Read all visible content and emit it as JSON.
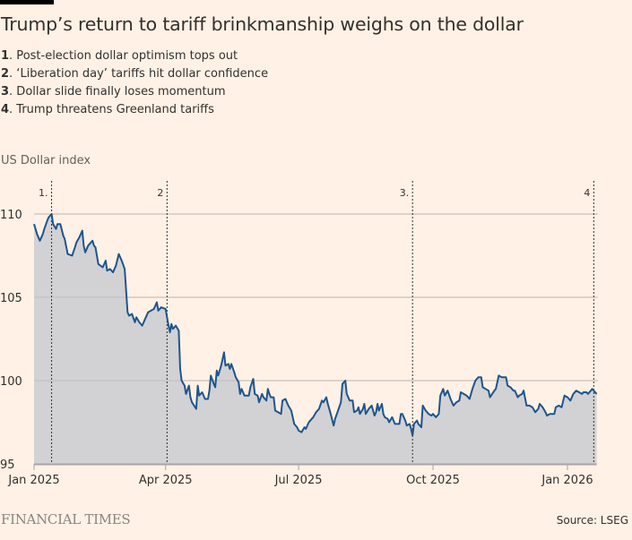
{
  "header": {
    "title": "Trump’s return to tariff brinkmanship weighs on the dollar",
    "notes": [
      {
        "num": "1",
        "text": ". Post-election dollar optimism tops out"
      },
      {
        "num": "2",
        "text": ". ‘Liberation day’ tariffs hit dollar confidence"
      },
      {
        "num": "3",
        "text": ". Dollar slide finally loses momentum"
      },
      {
        "num": "4",
        "text": ". Trump threatens Greenland tariffs"
      }
    ]
  },
  "footer": {
    "logo": "FINANCIAL TIMES",
    "source": "Source: LSEG"
  },
  "colors": {
    "background": "#fff1e5",
    "line": "#1e558c",
    "area": "#d2d2d4",
    "grid": "#c9bcb3",
    "axis": "#a7a4a9",
    "annotation": "#33302e"
  },
  "chart_data": {
    "type": "area",
    "title": "Trump’s return to tariff brinkmanship weighs on the dollar",
    "ylabel": "US Dollar index",
    "xlabel": "",
    "ylim": [
      95,
      112
    ],
    "xlim": [
      "2025-01-01",
      "2026-01-21"
    ],
    "yticks": [
      95,
      100,
      105,
      110
    ],
    "xticks": [
      {
        "date": "2025-01-01",
        "label": "Jan 2025"
      },
      {
        "date": "2025-04-01",
        "label": "Apr 2025"
      },
      {
        "date": "2025-07-01",
        "label": "Jul 2025"
      },
      {
        "date": "2025-10-01",
        "label": "Oct 2025"
      },
      {
        "date": "2026-01-01",
        "label": "Jan 2026"
      }
    ],
    "grid": true,
    "annotations": [
      {
        "date": "2025-01-13",
        "label": "1."
      },
      {
        "date": "2025-04-02",
        "label": "2"
      },
      {
        "date": "2025-09-17",
        "label": "3."
      },
      {
        "date": "2026-01-19",
        "label": "4"
      }
    ],
    "series": [
      {
        "name": "US Dollar index",
        "points": [
          [
            "2025-01-01",
            109.4
          ],
          [
            "2025-01-03",
            108.8
          ],
          [
            "2025-01-05",
            108.4
          ],
          [
            "2025-01-07",
            108.8
          ],
          [
            "2025-01-08",
            109.1
          ],
          [
            "2025-01-10",
            109.6
          ],
          [
            "2025-01-11",
            109.8
          ],
          [
            "2025-01-13",
            110.0
          ],
          [
            "2025-01-14",
            109.4
          ],
          [
            "2025-01-16",
            109.1
          ],
          [
            "2025-01-17",
            109.4
          ],
          [
            "2025-01-19",
            109.4
          ],
          [
            "2025-01-21",
            108.7
          ],
          [
            "2025-01-22",
            108.5
          ],
          [
            "2025-01-24",
            107.6
          ],
          [
            "2025-01-27",
            107.5
          ],
          [
            "2025-01-29",
            108.0
          ],
          [
            "2025-01-30",
            108.3
          ],
          [
            "2025-02-01",
            108.6
          ],
          [
            "2025-02-03",
            109.0
          ],
          [
            "2025-02-04",
            108.1
          ],
          [
            "2025-02-05",
            107.7
          ],
          [
            "2025-02-07",
            108.1
          ],
          [
            "2025-02-09",
            108.3
          ],
          [
            "2025-02-10",
            108.4
          ],
          [
            "2025-02-11",
            108.1
          ],
          [
            "2025-02-12",
            108.0
          ],
          [
            "2025-02-14",
            107.0
          ],
          [
            "2025-02-17",
            106.8
          ],
          [
            "2025-02-19",
            107.2
          ],
          [
            "2025-02-20",
            106.6
          ],
          [
            "2025-02-22",
            106.7
          ],
          [
            "2025-02-24",
            106.5
          ],
          [
            "2025-02-26",
            106.9
          ],
          [
            "2025-02-28",
            107.6
          ],
          [
            "2025-03-02",
            107.2
          ],
          [
            "2025-03-04",
            106.7
          ],
          [
            "2025-03-06",
            104.1
          ],
          [
            "2025-03-07",
            103.9
          ],
          [
            "2025-03-09",
            104.0
          ],
          [
            "2025-03-11",
            103.5
          ],
          [
            "2025-03-12",
            103.8
          ],
          [
            "2025-03-14",
            103.5
          ],
          [
            "2025-03-16",
            103.3
          ],
          [
            "2025-03-18",
            103.7
          ],
          [
            "2025-03-20",
            104.1
          ],
          [
            "2025-03-22",
            104.2
          ],
          [
            "2025-03-24",
            104.3
          ],
          [
            "2025-03-26",
            104.7
          ],
          [
            "2025-03-27",
            104.2
          ],
          [
            "2025-03-29",
            104.4
          ],
          [
            "2025-04-01",
            104.3
          ],
          [
            "2025-04-03",
            103.3
          ],
          [
            "2025-04-04",
            102.9
          ],
          [
            "2025-04-05",
            103.4
          ],
          [
            "2025-04-06",
            103.1
          ],
          [
            "2025-04-08",
            103.3
          ],
          [
            "2025-04-10",
            103.0
          ],
          [
            "2025-04-11",
            100.7
          ],
          [
            "2025-04-12",
            100.0
          ],
          [
            "2025-04-14",
            99.7
          ],
          [
            "2025-04-15",
            99.2
          ],
          [
            "2025-04-17",
            99.7
          ],
          [
            "2025-04-18",
            99.0
          ],
          [
            "2025-04-19",
            98.7
          ],
          [
            "2025-04-22",
            98.3
          ],
          [
            "2025-04-23",
            99.7
          ],
          [
            "2025-04-24",
            99.1
          ],
          [
            "2025-04-26",
            99.3
          ],
          [
            "2025-04-28",
            98.9
          ],
          [
            "2025-04-30",
            98.9
          ],
          [
            "2025-05-01",
            99.4
          ],
          [
            "2025-05-02",
            100.3
          ],
          [
            "2025-05-04",
            99.8
          ],
          [
            "2025-05-05",
            99.6
          ],
          [
            "2025-05-06",
            100.6
          ],
          [
            "2025-05-07",
            100.3
          ],
          [
            "2025-05-09",
            100.9
          ],
          [
            "2025-05-11",
            101.7
          ],
          [
            "2025-05-12",
            100.9
          ],
          [
            "2025-05-14",
            101.0
          ],
          [
            "2025-05-15",
            100.7
          ],
          [
            "2025-05-16",
            101.0
          ],
          [
            "2025-05-18",
            100.5
          ],
          [
            "2025-05-19",
            100.2
          ],
          [
            "2025-05-21",
            99.9
          ],
          [
            "2025-05-22",
            99.2
          ],
          [
            "2025-05-23",
            99.5
          ],
          [
            "2025-05-25",
            99.1
          ],
          [
            "2025-05-28",
            99.1
          ],
          [
            "2025-05-29",
            99.6
          ],
          [
            "2025-05-31",
            100.1
          ],
          [
            "2025-06-01",
            99.2
          ],
          [
            "2025-06-03",
            99.1
          ],
          [
            "2025-06-04",
            98.7
          ],
          [
            "2025-06-06",
            99.2
          ],
          [
            "2025-06-07",
            99.0
          ],
          [
            "2025-06-09",
            98.8
          ],
          [
            "2025-06-10",
            99.5
          ],
          [
            "2025-06-11",
            99.2
          ],
          [
            "2025-06-12",
            99.0
          ],
          [
            "2025-06-14",
            99.0
          ],
          [
            "2025-06-15",
            98.2
          ],
          [
            "2025-06-17",
            98.1
          ],
          [
            "2025-06-19",
            98.0
          ],
          [
            "2025-06-20",
            98.8
          ],
          [
            "2025-06-22",
            98.9
          ],
          [
            "2025-06-24",
            98.5
          ],
          [
            "2025-06-26",
            98.2
          ],
          [
            "2025-06-28",
            97.4
          ],
          [
            "2025-06-30",
            97.2
          ],
          [
            "2025-07-01",
            97.0
          ],
          [
            "2025-07-03",
            96.9
          ],
          [
            "2025-07-05",
            97.2
          ],
          [
            "2025-07-06",
            97.1
          ],
          [
            "2025-07-08",
            97.5
          ],
          [
            "2025-07-10",
            97.7
          ],
          [
            "2025-07-11",
            97.8
          ],
          [
            "2025-07-13",
            98.1
          ],
          [
            "2025-07-15",
            98.3
          ],
          [
            "2025-07-17",
            98.8
          ],
          [
            "2025-07-18",
            98.7
          ],
          [
            "2025-07-20",
            99.0
          ],
          [
            "2025-07-21",
            98.6
          ],
          [
            "2025-07-23",
            98.0
          ],
          [
            "2025-07-25",
            97.3
          ],
          [
            "2025-07-26",
            97.7
          ],
          [
            "2025-07-28",
            98.2
          ],
          [
            "2025-07-30",
            98.7
          ],
          [
            "2025-07-31",
            99.8
          ],
          [
            "2025-08-02",
            100.0
          ],
          [
            "2025-08-03",
            99.2
          ],
          [
            "2025-08-05",
            98.8
          ],
          [
            "2025-08-07",
            98.8
          ],
          [
            "2025-08-08",
            98.1
          ],
          [
            "2025-08-10",
            98.2
          ],
          [
            "2025-08-11",
            98.4
          ],
          [
            "2025-08-12",
            98.0
          ],
          [
            "2025-08-14",
            98.3
          ],
          [
            "2025-08-15",
            98.6
          ],
          [
            "2025-08-16",
            98.0
          ],
          [
            "2025-08-18",
            98.3
          ],
          [
            "2025-08-19",
            98.4
          ],
          [
            "2025-08-20",
            98.5
          ],
          [
            "2025-08-22",
            97.9
          ],
          [
            "2025-08-23",
            98.1
          ],
          [
            "2025-08-24",
            98.6
          ],
          [
            "2025-08-25",
            98.2
          ],
          [
            "2025-08-27",
            98.6
          ],
          [
            "2025-08-28",
            98.0
          ],
          [
            "2025-08-29",
            97.8
          ],
          [
            "2025-08-31",
            97.7
          ],
          [
            "2025-09-01",
            97.5
          ],
          [
            "2025-09-03",
            97.8
          ],
          [
            "2025-09-05",
            97.4
          ],
          [
            "2025-09-07",
            97.4
          ],
          [
            "2025-09-08",
            97.4
          ],
          [
            "2025-09-09",
            98.0
          ],
          [
            "2025-09-10",
            98.0
          ],
          [
            "2025-09-12",
            97.6
          ],
          [
            "2025-09-13",
            97.3
          ],
          [
            "2025-09-15",
            97.4
          ],
          [
            "2025-09-16",
            97.1
          ],
          [
            "2025-09-17",
            96.7
          ],
          [
            "2025-09-18",
            97.4
          ],
          [
            "2025-09-20",
            97.6
          ],
          [
            "2025-09-21",
            97.4
          ],
          [
            "2025-09-23",
            97.2
          ],
          [
            "2025-09-24",
            98.5
          ],
          [
            "2025-09-26",
            98.2
          ],
          [
            "2025-09-28",
            98.0
          ],
          [
            "2025-09-30",
            97.9
          ],
          [
            "2025-10-01",
            98.0
          ],
          [
            "2025-10-03",
            97.8
          ],
          [
            "2025-10-05",
            98.0
          ],
          [
            "2025-10-06",
            99.1
          ],
          [
            "2025-10-08",
            99.5
          ],
          [
            "2025-10-09",
            99.1
          ],
          [
            "2025-10-11",
            99.4
          ],
          [
            "2025-10-13",
            98.9
          ],
          [
            "2025-10-15",
            98.5
          ],
          [
            "2025-10-17",
            98.7
          ],
          [
            "2025-10-19",
            98.8
          ],
          [
            "2025-10-20",
            99.3
          ],
          [
            "2025-10-22",
            99.2
          ],
          [
            "2025-10-24",
            99.1
          ],
          [
            "2025-10-26",
            98.9
          ],
          [
            "2025-10-28",
            99.5
          ],
          [
            "2025-10-30",
            100.0
          ],
          [
            "2025-11-01",
            100.2
          ],
          [
            "2025-11-03",
            100.2
          ],
          [
            "2025-11-04",
            99.6
          ],
          [
            "2025-11-06",
            99.5
          ],
          [
            "2025-11-08",
            99.4
          ],
          [
            "2025-11-09",
            99.0
          ],
          [
            "2025-11-12",
            99.4
          ],
          [
            "2025-11-13",
            99.5
          ],
          [
            "2025-11-15",
            100.3
          ],
          [
            "2025-11-17",
            100.2
          ],
          [
            "2025-11-20",
            100.2
          ],
          [
            "2025-11-21",
            99.7
          ],
          [
            "2025-11-23",
            99.6
          ],
          [
            "2025-11-25",
            99.4
          ],
          [
            "2025-11-26",
            99.4
          ],
          [
            "2025-11-28",
            99.0
          ],
          [
            "2025-11-29",
            99.1
          ],
          [
            "2025-12-01",
            99.2
          ],
          [
            "2025-12-02",
            99.4
          ],
          [
            "2025-12-04",
            98.5
          ],
          [
            "2025-12-06",
            98.5
          ],
          [
            "2025-12-08",
            98.4
          ],
          [
            "2025-12-10",
            98.1
          ],
          [
            "2025-12-12",
            98.3
          ],
          [
            "2025-12-13",
            98.6
          ],
          [
            "2025-12-15",
            98.4
          ],
          [
            "2025-12-17",
            98.1
          ],
          [
            "2025-12-18",
            97.9
          ],
          [
            "2025-12-20",
            98.0
          ],
          [
            "2025-12-23",
            98.0
          ],
          [
            "2025-12-24",
            98.4
          ],
          [
            "2025-12-26",
            98.5
          ],
          [
            "2025-12-28",
            98.4
          ],
          [
            "2025-12-30",
            99.1
          ],
          [
            "2026-01-01",
            99.0
          ],
          [
            "2026-01-03",
            98.8
          ],
          [
            "2026-01-05",
            99.2
          ],
          [
            "2026-01-07",
            99.4
          ],
          [
            "2026-01-09",
            99.3
          ],
          [
            "2026-01-11",
            99.2
          ],
          [
            "2026-01-12",
            99.3
          ],
          [
            "2026-01-14",
            99.3
          ],
          [
            "2026-01-15",
            99.2
          ],
          [
            "2026-01-17",
            99.4
          ],
          [
            "2026-01-18",
            99.5
          ],
          [
            "2026-01-19",
            99.4
          ],
          [
            "2026-01-21",
            99.2
          ]
        ]
      }
    ]
  }
}
